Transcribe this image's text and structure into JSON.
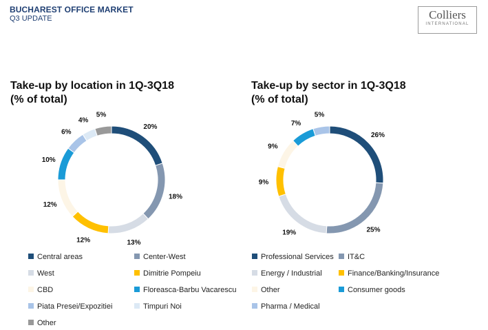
{
  "header": {
    "title": "BUCHAREST OFFICE MARKET",
    "subtitle": "Q3 UPDATE"
  },
  "logo": {
    "name": "Colliers",
    "sub": "INTERNATIONAL"
  },
  "chart_data": [
    {
      "type": "pie",
      "subtype": "donut",
      "title_line1": "Take-up by location in 1Q-3Q18",
      "title_line2": "(% of total)",
      "categories": [
        "Central areas",
        "Center-West",
        "West",
        "Dimitrie Pompeiu",
        "CBD",
        "Floreasca-Barbu Vacarescu",
        "Piata Presei/Expozitiei",
        "Timpuri Noi",
        "Other"
      ],
      "values": [
        20,
        18,
        13,
        12,
        12,
        10,
        6,
        4,
        5
      ],
      "labels": [
        "20%",
        "18%",
        "13%",
        "12%",
        "12%",
        "10%",
        "6%",
        "4%",
        "5%"
      ],
      "colors": [
        "#1f4e79",
        "#8497b0",
        "#d6dce5",
        "#ffc000",
        "#fdf5e6",
        "#1a9bd7",
        "#a9c4e8",
        "#dce9f5",
        "#999999"
      ]
    },
    {
      "type": "pie",
      "subtype": "donut",
      "title_line1": "Take-up by sector in 1Q-3Q18",
      "title_line2": "(% of total)",
      "categories": [
        "Professional Services",
        "IT&C",
        "Energy / Industrial",
        "Finance/Banking/Insurance",
        "Other",
        "Consumer goods",
        "Pharma / Medical"
      ],
      "values": [
        26,
        25,
        19,
        9,
        9,
        7,
        5
      ],
      "labels": [
        "26%",
        "25%",
        "19%",
        "9%",
        "9%",
        "7%",
        "5%"
      ],
      "colors": [
        "#1f4e79",
        "#8497b0",
        "#d6dce5",
        "#ffc000",
        "#fdf5e6",
        "#1a9bd7",
        "#a9c4e8"
      ]
    }
  ]
}
